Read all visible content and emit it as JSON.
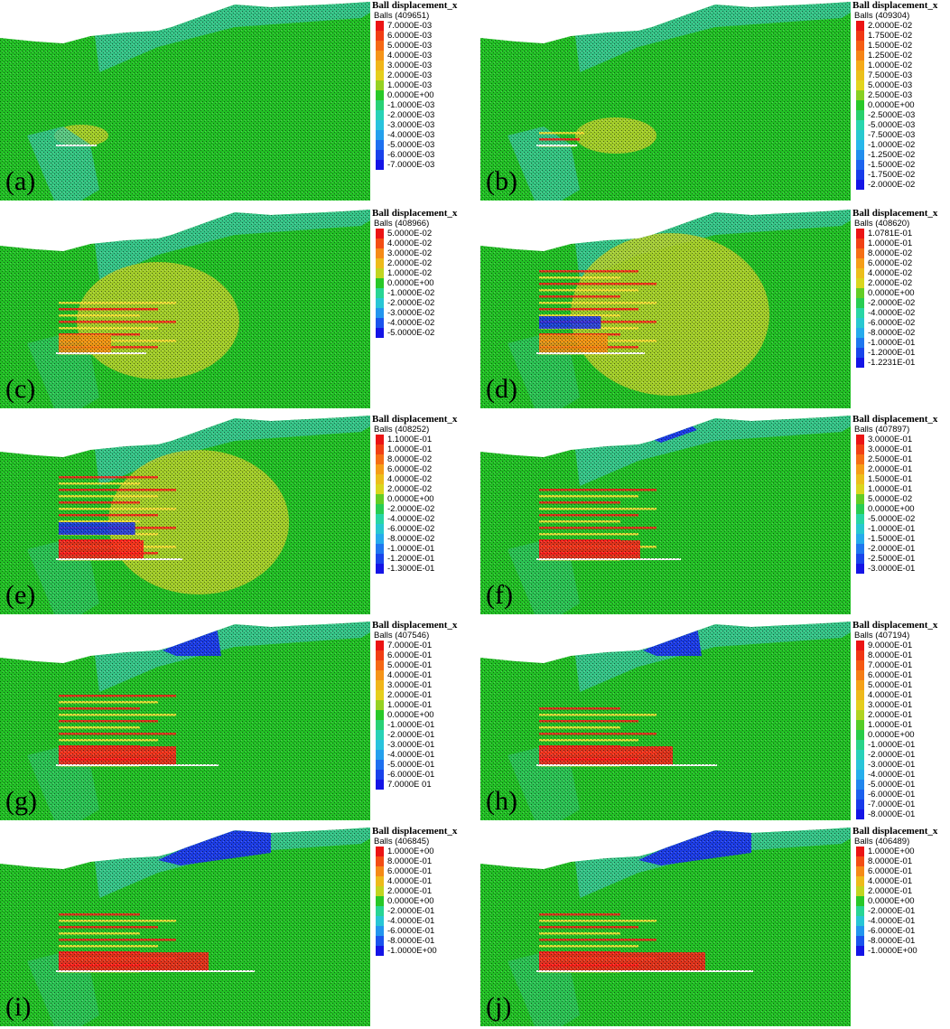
{
  "panels": [
    {
      "label": "(a)",
      "legend_title": "Ball displacement_x",
      "balls": "Balls (409651)",
      "values": [
        "7.0000E-03",
        "6.0000E-03",
        "5.0000E-03",
        "4.0000E-03",
        "3.0000E-03",
        "2.0000E-03",
        "1.0000E-03",
        "0.0000E+00",
        "-1.0000E-03",
        "-2.0000E-03",
        "-3.0000E-03",
        "-4.0000E-03",
        "-5.0000E-03",
        "-6.0000E-03",
        "-7.0000E-03"
      ]
    },
    {
      "label": "(b)",
      "legend_title": "Ball displacement_x",
      "balls": "Balls (409304)",
      "values": [
        "2.0000E-02",
        "1.7500E-02",
        "1.5000E-02",
        "1.2500E-02",
        "1.0000E-02",
        "7.5000E-03",
        "5.0000E-03",
        "2.5000E-03",
        "0.0000E+00",
        "-2.5000E-03",
        "-5.0000E-03",
        "-7.5000E-03",
        "-1.0000E-02",
        "-1.2500E-02",
        "-1.5000E-02",
        "-1.7500E-02",
        "-2.0000E-02"
      ]
    },
    {
      "label": "(c)",
      "legend_title": "Ball displacement_x",
      "balls": "Balls (408966)",
      "values": [
        "5.0000E-02",
        "4.0000E-02",
        "3.0000E-02",
        "2.0000E-02",
        "1.0000E-02",
        "0.0000E+00",
        "-1.0000E-02",
        "-2.0000E-02",
        "-3.0000E-02",
        "-4.0000E-02",
        "-5.0000E-02"
      ]
    },
    {
      "label": "(d)",
      "legend_title": "Ball displacement_x",
      "balls": "Balls (408620)",
      "values": [
        "1.0781E-01",
        "1.0000E-01",
        "8.0000E-02",
        "6.0000E-02",
        "4.0000E-02",
        "2.0000E-02",
        "0.0000E+00",
        "-2.0000E-02",
        "-4.0000E-02",
        "-6.0000E-02",
        "-8.0000E-02",
        "-1.0000E-01",
        "-1.2000E-01",
        "-1.2231E-01"
      ]
    },
    {
      "label": "(e)",
      "legend_title": "Ball displacement_x",
      "balls": "Balls (408252)",
      "values": [
        "1.1000E-01",
        "1.0000E-01",
        "8.0000E-02",
        "6.0000E-02",
        "4.0000E-02",
        "2.0000E-02",
        "0.0000E+00",
        "-2.0000E-02",
        "-4.0000E-02",
        "-6.0000E-02",
        "-8.0000E-02",
        "-1.0000E-01",
        "-1.2000E-01",
        "-1.3000E-01"
      ]
    },
    {
      "label": "(f)",
      "legend_title": "Ball displacement_x",
      "balls": "Balls (407897)",
      "values": [
        "3.0000E-01",
        "3.0000E-01",
        "2.5000E-01",
        "2.0000E-01",
        "1.5000E-01",
        "1.0000E-01",
        "5.0000E-02",
        "0.0000E+00",
        "-5.0000E-02",
        "-1.0000E-01",
        "-1.5000E-01",
        "-2.0000E-01",
        "-2.5000E-01",
        "-3.0000E-01"
      ]
    },
    {
      "label": "(g)",
      "legend_title": "Ball displacement_x",
      "balls": "Balls (407546)",
      "values": [
        "7.0000E-01",
        "6.0000E-01",
        "5.0000E-01",
        "4.0000E-01",
        "3.0000E-01",
        "2.0000E-01",
        "1.0000E-01",
        "0.0000E+00",
        "-1.0000E-01",
        "-2.0000E-01",
        "-3.0000E-01",
        "-4.0000E-01",
        "-5.0000E-01",
        "-6.0000E-01",
        "7.0000E 01"
      ]
    },
    {
      "label": "(h)",
      "legend_title": "Ball displacement_x",
      "balls": "Balls (407194)",
      "values": [
        "9.0000E-01",
        "8.0000E-01",
        "7.0000E-01",
        "6.0000E-01",
        "5.0000E-01",
        "4.0000E-01",
        "3.0000E-01",
        "2.0000E-01",
        "1.0000E-01",
        "0.0000E+00",
        "-1.0000E-01",
        "-2.0000E-01",
        "-3.0000E-01",
        "-4.0000E-01",
        "-5.0000E-01",
        "-6.0000E-01",
        "-7.0000E-01",
        "-8.0000E-01"
      ]
    },
    {
      "label": "(i)",
      "legend_title": "Ball displacement_x",
      "balls": "Balls (406845)",
      "values": [
        "1.0000E+00",
        "8.0000E-01",
        "6.0000E-01",
        "4.0000E-01",
        "2.0000E-01",
        "0.0000E+00",
        "-2.0000E-01",
        "-4.0000E-01",
        "-6.0000E-01",
        "-8.0000E-01",
        "-1.0000E+00"
      ]
    },
    {
      "label": "(j)",
      "legend_title": "Ball displacement_x",
      "balls": "Balls (406489)",
      "values": [
        "1.0000E+00",
        "8.0000E-01",
        "6.0000E-01",
        "4.0000E-01",
        "2.0000E-01",
        "0.0000E+00",
        "-2.0000E-01",
        "-4.0000E-01",
        "-6.0000E-01",
        "-8.0000E-01",
        "-1.0000E+00"
      ]
    }
  ],
  "colors": {
    "ground": "#22c025",
    "cyan_zone": "#3cc6a8",
    "yellow_zone": "#b9cf2a",
    "red": "#ff1a1a",
    "orange": "#f58a10",
    "blue": "#1a2ef0",
    "white_edge": "#ffffff"
  }
}
